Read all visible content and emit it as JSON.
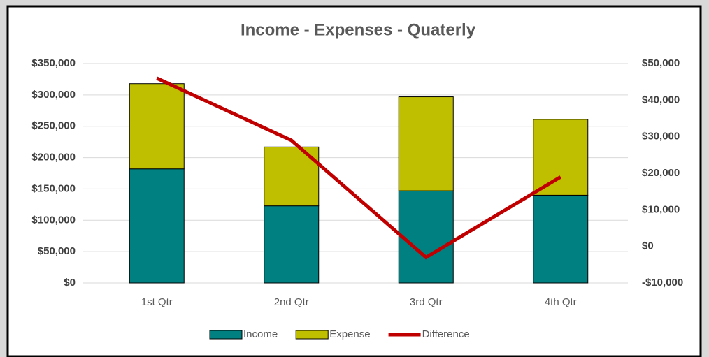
{
  "chart_data": {
    "type": "bar",
    "stacked": true,
    "title": "Income - Expenses - Quaterly",
    "categories": [
      "1st Qtr",
      "2nd Qtr",
      "3rd Qtr",
      "4th Qtr"
    ],
    "series": [
      {
        "name": "Income",
        "type": "bar",
        "color": "#008080",
        "values": [
          182000,
          123000,
          147000,
          140000
        ]
      },
      {
        "name": "Expense",
        "type": "bar",
        "color": "#bfbf00",
        "values": [
          136000,
          94000,
          150000,
          121000
        ]
      },
      {
        "name": "Difference",
        "type": "line",
        "axis": "y2",
        "color": "#c00000",
        "values": [
          46000,
          29000,
          -3000,
          19000
        ]
      }
    ],
    "ylim": [
      0,
      350000
    ],
    "yticks": [
      {
        "value": 0,
        "label": "$0"
      },
      {
        "value": 50000,
        "label": "$50,000"
      },
      {
        "value": 100000,
        "label": "$100,000"
      },
      {
        "value": 150000,
        "label": "$150,000"
      },
      {
        "value": 200000,
        "label": "$200,000"
      },
      {
        "value": 250000,
        "label": "$250,000"
      },
      {
        "value": 300000,
        "label": "$300,000"
      },
      {
        "value": 350000,
        "label": "$350,000"
      }
    ],
    "y2lim": [
      -10000,
      50000
    ],
    "y2ticks": [
      {
        "value": -10000,
        "label": "-$10,000"
      },
      {
        "value": 0,
        "label": "$0"
      },
      {
        "value": 10000,
        "label": "$10,000"
      },
      {
        "value": 20000,
        "label": "$20,000"
      },
      {
        "value": 30000,
        "label": "$30,000"
      },
      {
        "value": 40000,
        "label": "$40,000"
      },
      {
        "value": 50000,
        "label": "$50,000"
      }
    ],
    "grid": true,
    "legend": "bottom"
  }
}
